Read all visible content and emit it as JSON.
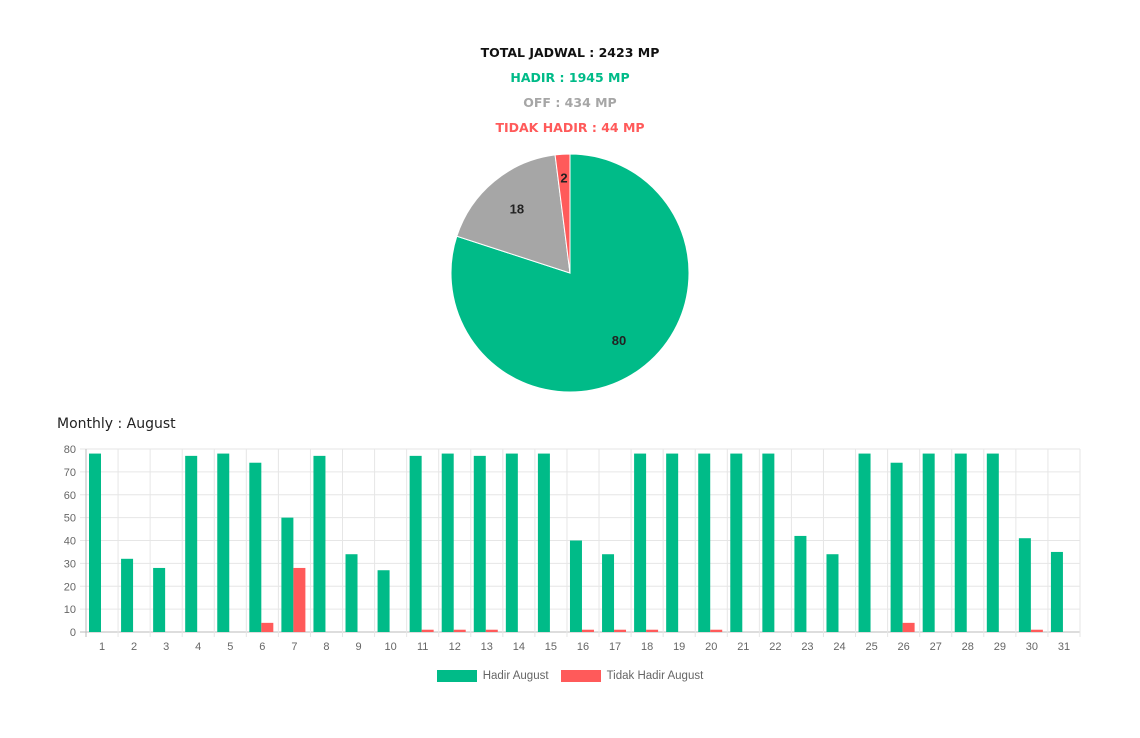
{
  "summary": {
    "total": "TOTAL JADWAL : 2423 MP",
    "hadir": "HADIR : 1945 MP",
    "off": "OFF : 434 MP",
    "tidak_hadir": "TIDAK HADIR : 44 MP"
  },
  "colors": {
    "total": "#111111",
    "hadir": "#00bb88",
    "off": "#a6a6a6",
    "tidak_hadir": "#ff5a5a"
  },
  "monthly_title": "Monthly : August",
  "legend": {
    "hadir": "Hadir August",
    "tidak_hadir": "Tidak Hadir August"
  },
  "chart_data": [
    {
      "type": "pie",
      "slices": [
        {
          "category": "hadir",
          "value": 80,
          "label": "80",
          "color": "#00bb88"
        },
        {
          "category": "off",
          "value": 18,
          "label": "18",
          "color": "#a6a6a6"
        },
        {
          "category": "tidak_hadir",
          "value": 2,
          "label": "2",
          "color": "#ff5a5a"
        }
      ]
    },
    {
      "type": "bar",
      "title": "Monthly : August",
      "categories": [
        "1",
        "2",
        "3",
        "4",
        "5",
        "6",
        "7",
        "8",
        "9",
        "10",
        "11",
        "12",
        "13",
        "14",
        "15",
        "16",
        "17",
        "18",
        "19",
        "20",
        "21",
        "22",
        "23",
        "24",
        "25",
        "26",
        "27",
        "28",
        "29",
        "30",
        "31"
      ],
      "series": [
        {
          "name": "Hadir August",
          "color": "#00bb88",
          "values": [
            78,
            32,
            28,
            77,
            78,
            74,
            50,
            77,
            34,
            27,
            77,
            78,
            77,
            78,
            78,
            40,
            34,
            78,
            78,
            78,
            78,
            78,
            42,
            34,
            78,
            74,
            78,
            78,
            78,
            41,
            35
          ]
        },
        {
          "name": "Tidak Hadir August",
          "color": "#ff5a5a",
          "values": [
            0,
            0,
            0,
            0,
            0,
            4,
            28,
            0,
            0,
            0,
            1,
            1,
            1,
            0,
            0,
            1,
            1,
            1,
            0,
            1,
            0,
            0,
            0,
            0,
            0,
            4,
            0,
            0,
            0,
            1,
            0
          ]
        }
      ],
      "ylim": [
        0,
        80
      ],
      "yticks": [
        0,
        10,
        20,
        30,
        40,
        50,
        60,
        70,
        80
      ],
      "grid": true,
      "legend_position": "bottom"
    }
  ]
}
